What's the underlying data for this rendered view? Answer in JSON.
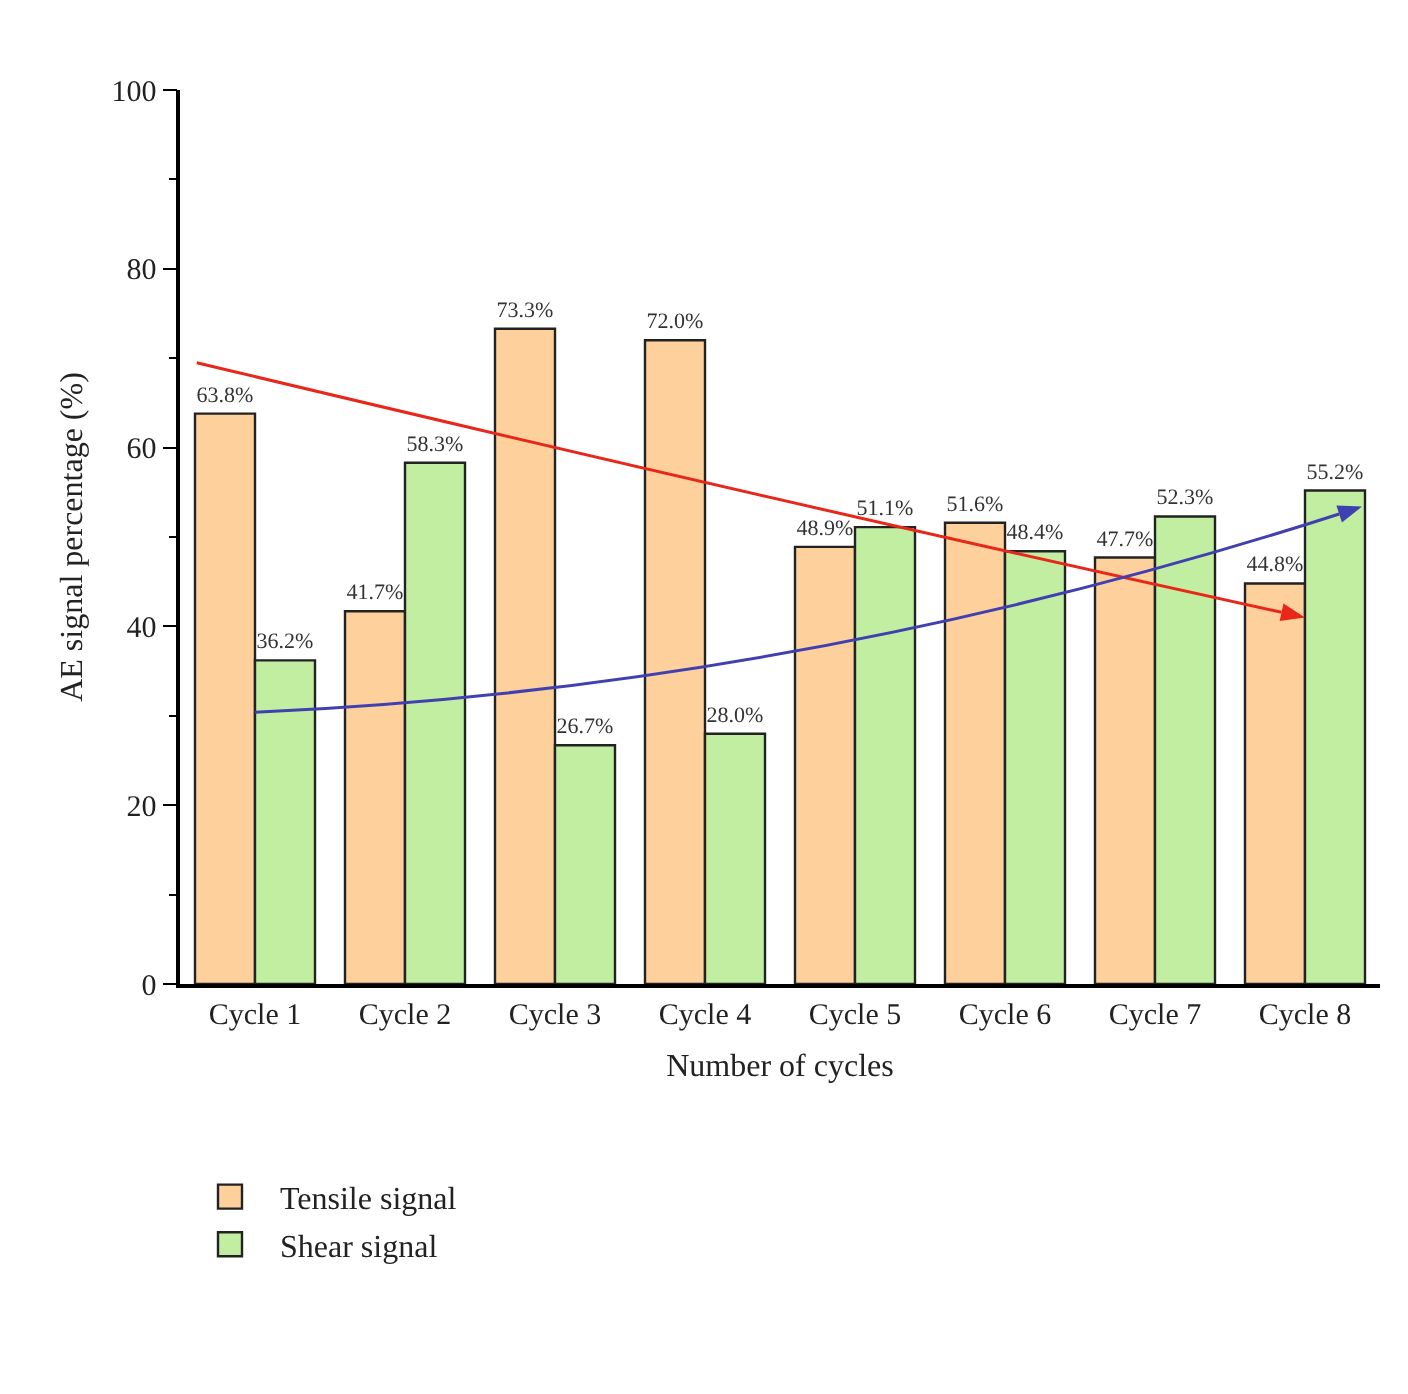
{
  "chart_data": {
    "type": "bar",
    "xlabel": "Number of cycles",
    "ylabel": "AE signal percentage (%)",
    "categories": [
      "Cycle 1",
      "Cycle 2",
      "Cycle 3",
      "Cycle 4",
      "Cycle 5",
      "Cycle 6",
      "Cycle 7",
      "Cycle 8"
    ],
    "series": [
      {
        "name": "Tensile signal",
        "color": "#fdd09c",
        "values": [
          63.8,
          41.7,
          73.3,
          72.0,
          48.9,
          51.6,
          47.7,
          44.8
        ],
        "value_labels": [
          "63.8%",
          "41.7%",
          "73.3%",
          "72.0%",
          "48.9%",
          "51.6%",
          "47.7%",
          "44.8%"
        ]
      },
      {
        "name": "Shear signal",
        "color": "#c2eea2",
        "values": [
          36.2,
          58.3,
          26.7,
          28.0,
          51.1,
          48.4,
          52.3,
          55.2
        ],
        "value_labels": [
          "36.2%",
          "58.3%",
          "26.7%",
          "28.0%",
          "51.1%",
          "48.4%",
          "52.3%",
          "55.2%"
        ]
      }
    ],
    "ylim": [
      0,
      100
    ],
    "yticks": [
      0,
      20,
      40,
      60,
      80,
      100
    ],
    "grid": false,
    "legend": "bottom left"
  }
}
